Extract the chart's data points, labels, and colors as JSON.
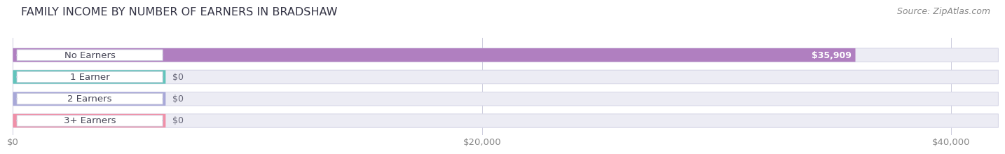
{
  "title": "FAMILY INCOME BY NUMBER OF EARNERS IN BRADSHAW",
  "source": "Source: ZipAtlas.com",
  "categories": [
    "No Earners",
    "1 Earner",
    "2 Earners",
    "3+ Earners"
  ],
  "values": [
    35909,
    0,
    0,
    0
  ],
  "bar_colors": [
    "#b07fc0",
    "#62c4bb",
    "#a8a8d8",
    "#f090a8"
  ],
  "xlim_max": 42000,
  "xticks": [
    0,
    20000,
    40000
  ],
  "xticklabels": [
    "$0",
    "$20,000",
    "$40,000"
  ],
  "title_fontsize": 11.5,
  "source_fontsize": 9,
  "tick_fontsize": 9.5,
  "label_fontsize": 9.5,
  "value_fontsize": 9,
  "fig_bg": "#ffffff",
  "bar_bg": "#ececf4",
  "bar_bg_edge": "#d8d8e8",
  "label_box_bg": "#ffffff",
  "label_box_edge": "#ccccdd",
  "title_color": "#333344",
  "source_color": "#888888",
  "tick_color": "#888888",
  "label_color": "#444455",
  "value_color_on_bar": "#ffffff",
  "value_color_outside": "#666677"
}
